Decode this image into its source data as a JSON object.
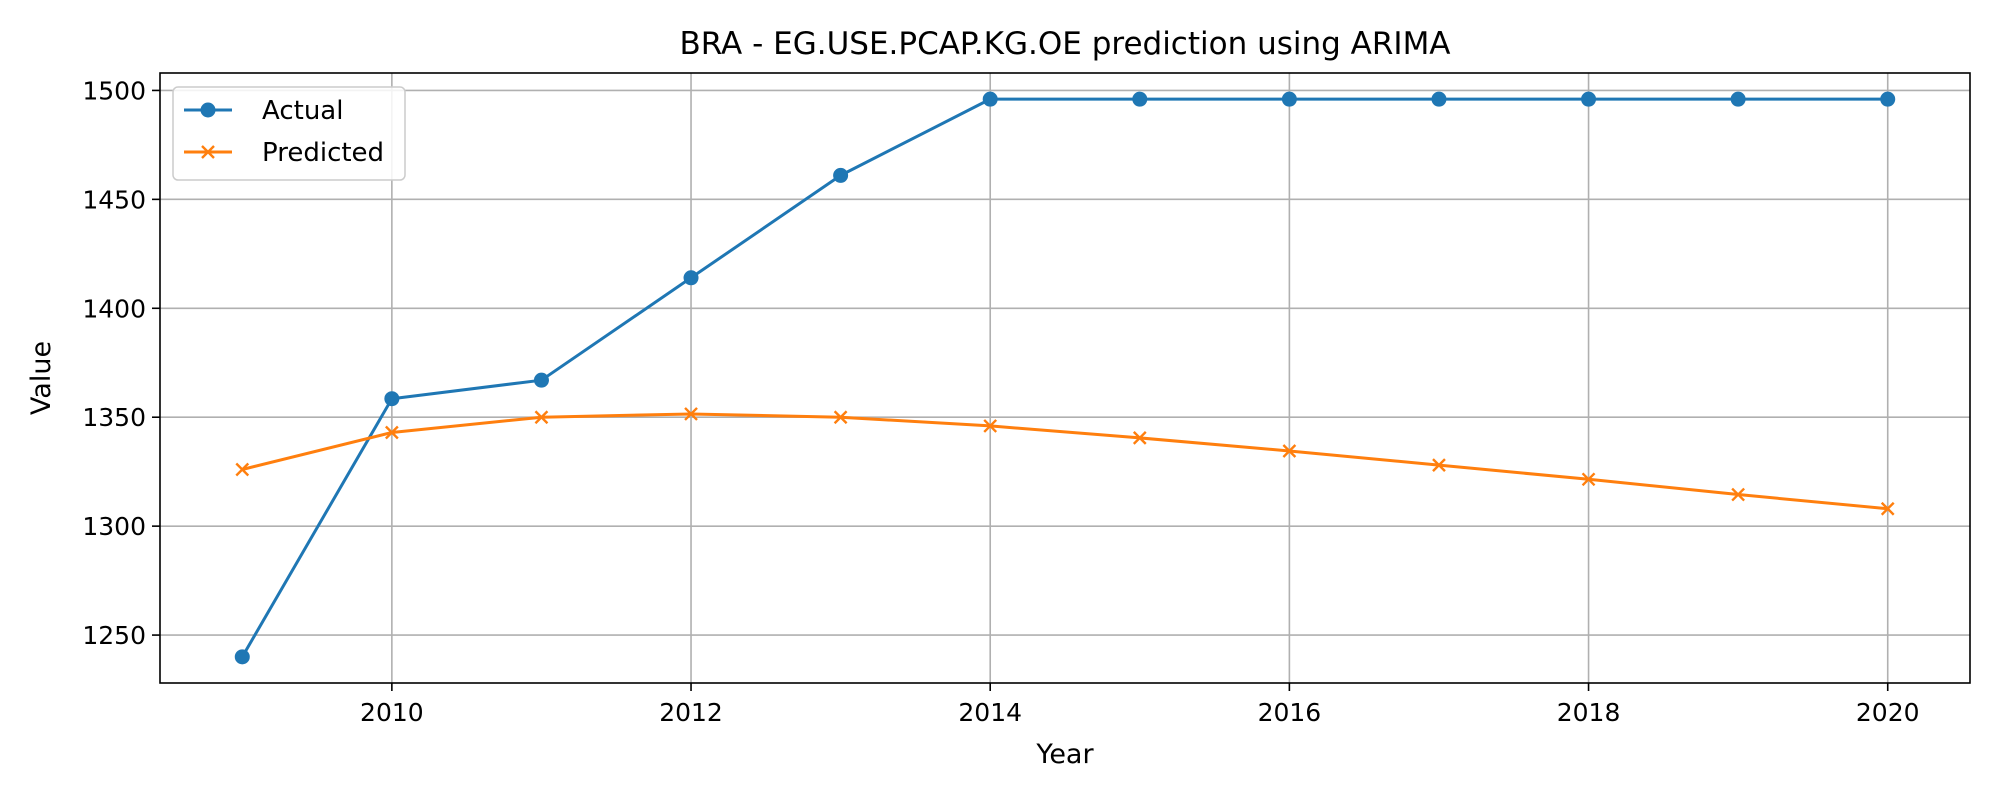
{
  "chart_data": {
    "type": "line",
    "title": "BRA - EG.USE.PCAP.KG.OE prediction using ARIMA",
    "xlabel": "Year",
    "ylabel": "Value",
    "x": [
      2009,
      2010,
      2011,
      2012,
      2013,
      2014,
      2015,
      2016,
      2017,
      2018,
      2019,
      2020
    ],
    "xlim": [
      2008.45,
      2020.55
    ],
    "ylim": [
      1228,
      1508
    ],
    "xticks": [
      2010,
      2012,
      2014,
      2016,
      2018,
      2020
    ],
    "yticks": [
      1250,
      1300,
      1350,
      1400,
      1450,
      1500
    ],
    "grid": true,
    "legend_position": "top-left",
    "series": [
      {
        "name": "Actual",
        "color": "#1f77b4",
        "marker": "circle",
        "values": [
          1240,
          1358.5,
          1367,
          1414,
          1461,
          1496,
          1496,
          1496,
          1496,
          1496,
          1496,
          1496
        ]
      },
      {
        "name": "Predicted",
        "color": "#ff7f0e",
        "marker": "x",
        "values": [
          1326,
          1343,
          1350,
          1351.5,
          1350,
          1346,
          1340.5,
          1334.5,
          1328,
          1321.5,
          1314.5,
          1308
        ]
      }
    ]
  }
}
